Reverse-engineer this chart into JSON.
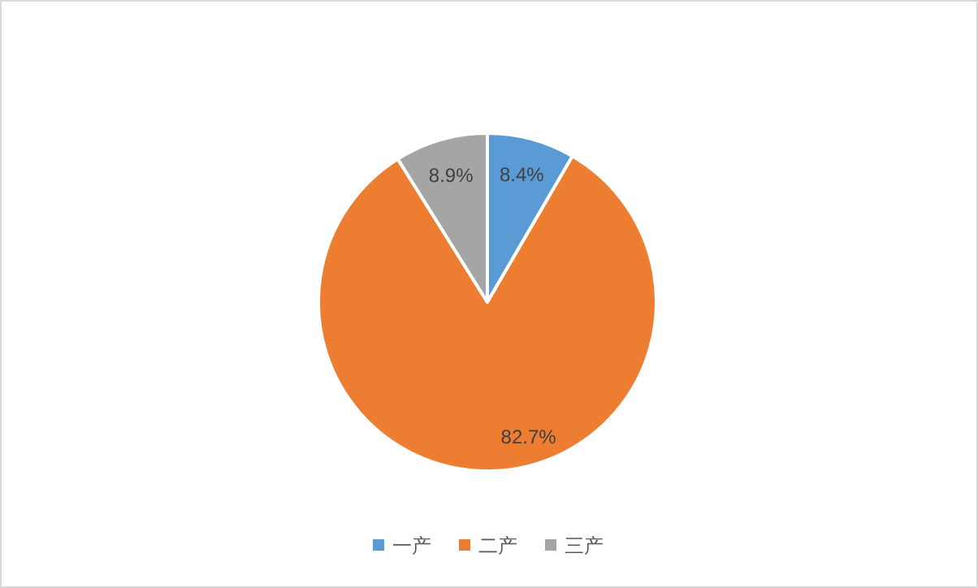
{
  "chart_data": {
    "type": "pie",
    "categories": [
      "一产",
      "二产",
      "三产"
    ],
    "values": [
      8.4,
      82.7,
      8.9
    ],
    "colors": [
      "#5b9bd5",
      "#ed7d31",
      "#a5a5a5"
    ],
    "value_labels": [
      "8.4%",
      "82.7%",
      "8.9%"
    ],
    "legend": "bottom"
  }
}
